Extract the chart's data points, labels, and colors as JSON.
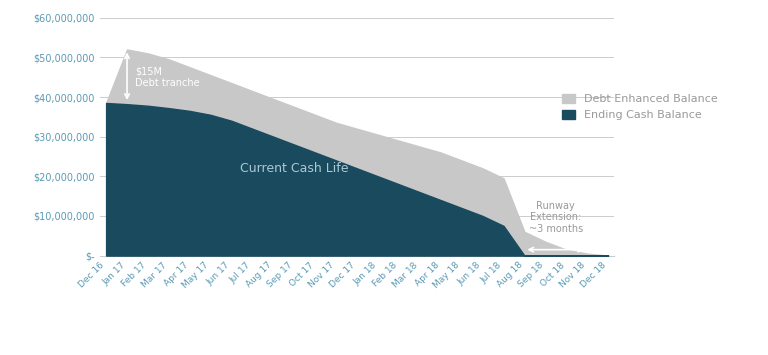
{
  "x_labels": [
    "Dec 16",
    "Jan 17",
    "Feb 17",
    "Mar 17",
    "Apr 17",
    "May 17",
    "Jun 17",
    "Jul 17",
    "Aug 17",
    "Sep 17",
    "Oct 17",
    "Nov 17",
    "Dec 17",
    "Jan 18",
    "Feb 18",
    "Mar 18",
    "Apr 18",
    "May 18",
    "Jun 18",
    "Jul 18",
    "Aug 18",
    "Sep 18",
    "Oct 18",
    "Nov 18",
    "Dec 18"
  ],
  "ending_cash": [
    38500000,
    38200000,
    37800000,
    37200000,
    36500000,
    35500000,
    34000000,
    32000000,
    30000000,
    28000000,
    26000000,
    24000000,
    22000000,
    20000000,
    18000000,
    16000000,
    14000000,
    12000000,
    10000000,
    7500000,
    0,
    0,
    0,
    0,
    0
  ],
  "debt_enhanced": [
    38500000,
    52000000,
    51000000,
    49500000,
    47500000,
    45500000,
    43500000,
    41500000,
    39500000,
    37500000,
    35500000,
    33500000,
    32000000,
    30500000,
    29000000,
    27500000,
    26000000,
    24000000,
    22000000,
    19500000,
    6000000,
    3500000,
    1500000,
    500000,
    0
  ],
  "cash_color": "#1a4a5e",
  "debt_color": "#c8c8c8",
  "grid_color": "#cccccc",
  "text_color": "#5b9ab5",
  "annotation_color": "#999999",
  "background_color": "#ffffff",
  "ylim": [
    0,
    60000000
  ],
  "yticks": [
    0,
    10000000,
    20000000,
    30000000,
    40000000,
    50000000,
    60000000
  ],
  "ytick_labels": [
    "$-",
    "$10,000,000",
    "$20,000,000",
    "$30,000,000",
    "$40,000,000",
    "$50,000,000",
    "$60,000,000"
  ],
  "legend_debt_label": "Debt Enhanced Balance",
  "legend_cash_label": "Ending Cash Balance",
  "arrow_runway_text": "Runway\nExtension:\n~3 months",
  "label_cash_life": "Current Cash Life",
  "cash_life_label_color": "#aec8d5"
}
